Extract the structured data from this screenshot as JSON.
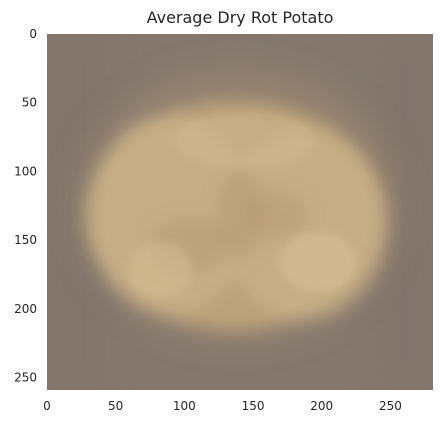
{
  "title": "Average Dry Rot Potato",
  "image": {
    "description": "blurred average image of potatoes: a lighter yellow-beige rounded mass with two lobes on a grey-brown background",
    "colors": {
      "background": "#85796f",
      "background_dark": "#7b7068",
      "potato": "#c2a77d",
      "potato_light": "#d0b88c",
      "potato_shadow": "#a98f6c",
      "highlight": "#d9c096"
    }
  },
  "axes": {
    "x_ticks": [
      "0",
      "50",
      "100",
      "150",
      "200",
      "250"
    ],
    "y_ticks": [
      "0",
      "50",
      "100",
      "150",
      "200",
      "250"
    ]
  }
}
